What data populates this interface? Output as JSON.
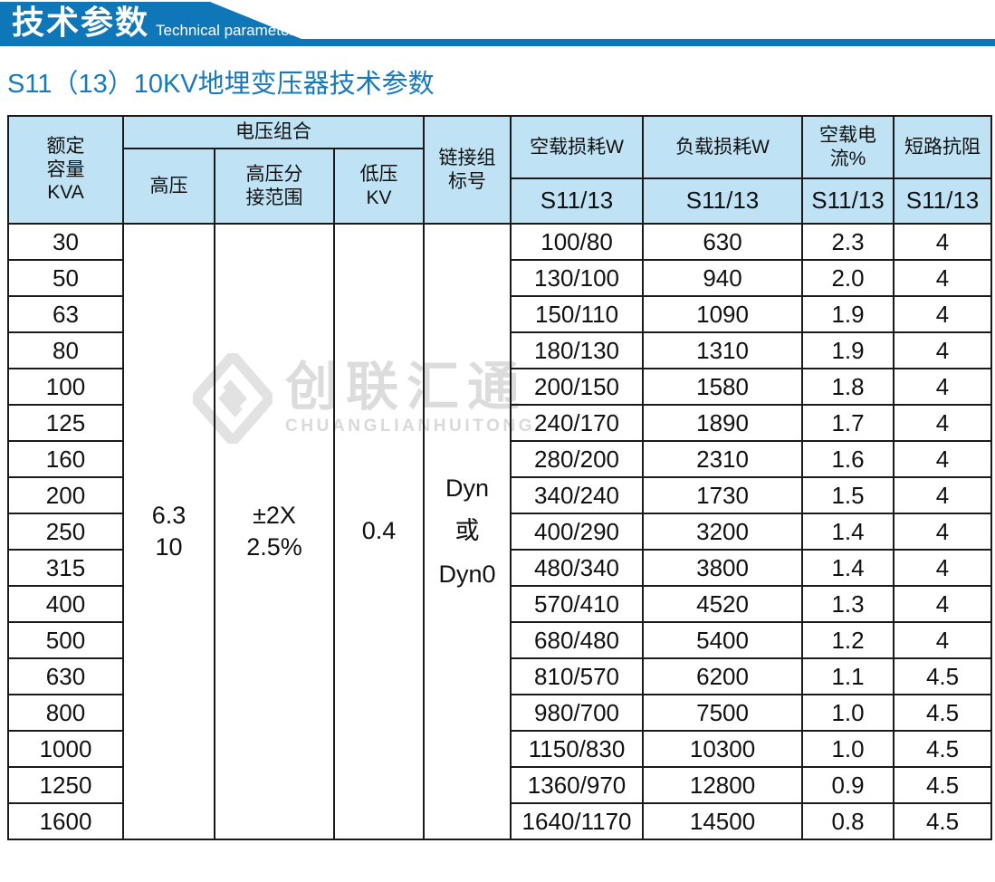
{
  "banner": {
    "title": "技术参数",
    "subtitle": "Technical parameter"
  },
  "page_title": "S11（13）10KV地埋变压器技术参数",
  "colors": {
    "banner_blue": "#0f76b8",
    "header_bg": "#bfe2f4",
    "title_blue": "#187abd",
    "border": "#1a1a1a",
    "watermark_gray": "#dcdcdc"
  },
  "watermark": {
    "text_cn": "创联汇通",
    "text_en": "CHUANGLIANHUITONG"
  },
  "table": {
    "header": {
      "rated_capacity_lines": [
        "额定",
        "容量",
        "KVA"
      ],
      "voltage_combo": "电压组合",
      "hv": "高压",
      "hv_tap_lines": [
        "高压分",
        "接范围"
      ],
      "lv_lines": [
        "低压",
        "KV"
      ],
      "connection_lines": [
        "链接组",
        "标号"
      ],
      "no_load_loss": "空载损耗W",
      "load_loss": "负载损耗W",
      "no_load_current": "空载电流%",
      "short_circuit_impedance": "短路抗阻",
      "model_no_load": "S11/13",
      "model_load": "S11/13",
      "model_current": "S11/13",
      "model_impedance": "S11/13"
    },
    "merged": {
      "hv_lines": [
        "6.3",
        "10"
      ],
      "hv_tap_lines": [
        "±2X",
        "2.5%"
      ],
      "lv": "0.4",
      "connection_lines": [
        "Dyn",
        "或",
        "Dyn0"
      ]
    },
    "rows": [
      {
        "kva": "30",
        "no_load_loss": "100/80",
        "load_loss": "630",
        "no_load_current": "2.3",
        "impedance": "4"
      },
      {
        "kva": "50",
        "no_load_loss": "130/100",
        "load_loss": "940",
        "no_load_current": "2.0",
        "impedance": "4"
      },
      {
        "kva": "63",
        "no_load_loss": "150/110",
        "load_loss": "1090",
        "no_load_current": "1.9",
        "impedance": "4"
      },
      {
        "kva": "80",
        "no_load_loss": "180/130",
        "load_loss": "1310",
        "no_load_current": "1.9",
        "impedance": "4"
      },
      {
        "kva": "100",
        "no_load_loss": "200/150",
        "load_loss": "1580",
        "no_load_current": "1.8",
        "impedance": "4"
      },
      {
        "kva": "125",
        "no_load_loss": "240/170",
        "load_loss": "1890",
        "no_load_current": "1.7",
        "impedance": "4"
      },
      {
        "kva": "160",
        "no_load_loss": "280/200",
        "load_loss": "2310",
        "no_load_current": "1.6",
        "impedance": "4"
      },
      {
        "kva": "200",
        "no_load_loss": "340/240",
        "load_loss": "1730",
        "no_load_current": "1.5",
        "impedance": "4"
      },
      {
        "kva": "250",
        "no_load_loss": "400/290",
        "load_loss": "3200",
        "no_load_current": "1.4",
        "impedance": "4"
      },
      {
        "kva": "315",
        "no_load_loss": "480/340",
        "load_loss": "3800",
        "no_load_current": "1.4",
        "impedance": "4"
      },
      {
        "kva": "400",
        "no_load_loss": "570/410",
        "load_loss": "4520",
        "no_load_current": "1.3",
        "impedance": "4"
      },
      {
        "kva": "500",
        "no_load_loss": "680/480",
        "load_loss": "5400",
        "no_load_current": "1.2",
        "impedance": "4"
      },
      {
        "kva": "630",
        "no_load_loss": "810/570",
        "load_loss": "6200",
        "no_load_current": "1.1",
        "impedance": "4.5"
      },
      {
        "kva": "800",
        "no_load_loss": "980/700",
        "load_loss": "7500",
        "no_load_current": "1.0",
        "impedance": "4.5"
      },
      {
        "kva": "1000",
        "no_load_loss": "1150/830",
        "load_loss": "10300",
        "no_load_current": "1.0",
        "impedance": "4.5"
      },
      {
        "kva": "1250",
        "no_load_loss": "1360/970",
        "load_loss": "12800",
        "no_load_current": "0.9",
        "impedance": "4.5"
      },
      {
        "kva": "1600",
        "no_load_loss": "1640/1170",
        "load_loss": "14500",
        "no_load_current": "0.8",
        "impedance": "4.5"
      }
    ]
  }
}
